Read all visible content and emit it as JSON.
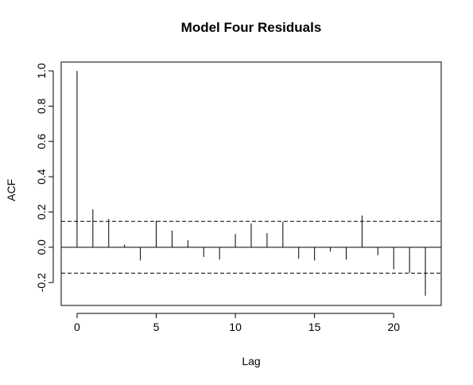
{
  "chart_data": {
    "type": "bar",
    "title": "Model Four Residuals",
    "xlabel": "Lag",
    "ylabel": "ACF",
    "xlim": [
      -1,
      23
    ],
    "ylim": [
      -0.33,
      1.05
    ],
    "x_ticks": [
      0,
      5,
      10,
      15,
      20
    ],
    "y_ticks": [
      -0.2,
      0.0,
      0.2,
      0.4,
      0.6,
      0.8,
      1.0
    ],
    "y_tick_labels": [
      "-0.2",
      "0.0",
      "0.2",
      "0.4",
      "0.6",
      "0.8",
      "1.0"
    ],
    "confidence_bound": 0.147,
    "grid": false,
    "series": [
      {
        "lags": [
          0,
          1,
          2,
          3,
          4,
          5,
          6,
          7,
          8,
          9,
          10,
          11,
          12,
          13,
          14,
          15,
          16,
          17,
          18,
          19,
          20,
          21,
          22
        ],
        "values": [
          1.0,
          0.215,
          0.16,
          0.015,
          -0.075,
          0.15,
          0.095,
          0.04,
          -0.055,
          -0.07,
          0.075,
          0.135,
          0.08,
          0.145,
          -0.065,
          -0.075,
          -0.025,
          -0.07,
          0.18,
          -0.045,
          -0.125,
          -0.145,
          -0.275
        ]
      }
    ],
    "colors": {
      "line": "#000000",
      "background": "#ffffff"
    }
  }
}
